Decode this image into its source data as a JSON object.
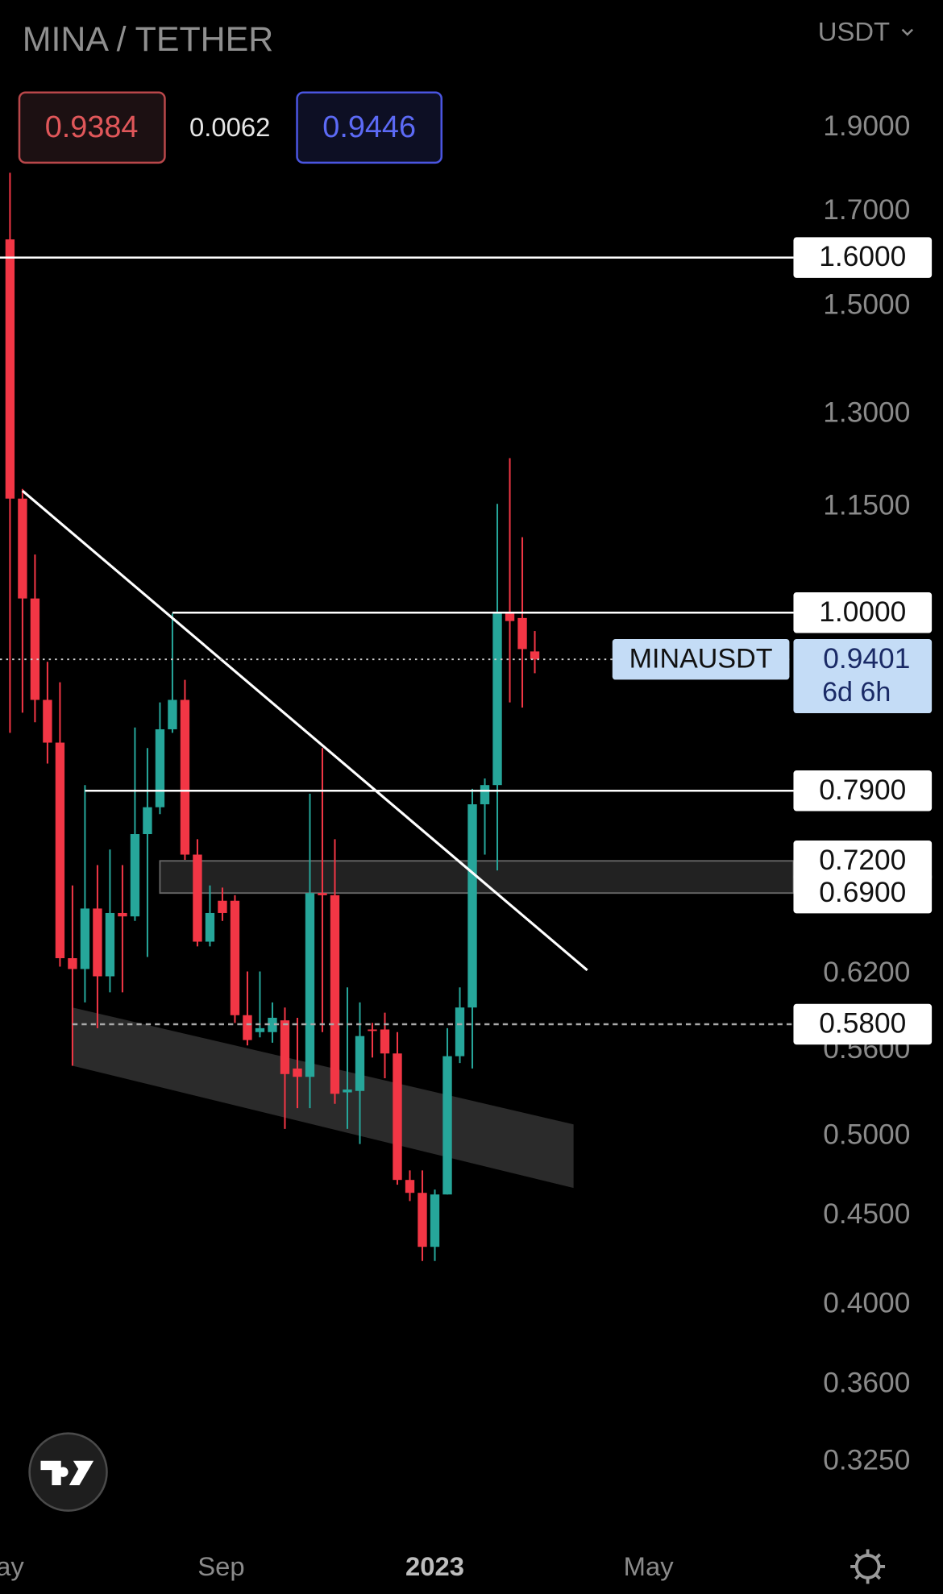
{
  "chart_data": {
    "type": "candlestick",
    "title": "MINA / TETHER",
    "currency": "USDT",
    "header": {
      "bid": 0.9384,
      "spread": 0.0062,
      "ask": 0.9446
    },
    "log_scale": true,
    "ylim": [
      0.295,
      2.25
    ],
    "yticks": [
      {
        "value": 1.9,
        "label": "1.9000"
      },
      {
        "value": 1.7,
        "label": "1.7000"
      },
      {
        "value": 1.5,
        "label": "1.5000"
      },
      {
        "value": 1.3,
        "label": "1.3000"
      },
      {
        "value": 1.15,
        "label": "1.1500"
      },
      {
        "value": 0.62,
        "label": "0.6200"
      },
      {
        "value": 0.56,
        "label": "0.5600"
      },
      {
        "value": 0.5,
        "label": "0.5000"
      },
      {
        "value": 0.45,
        "label": "0.4500"
      },
      {
        "value": 0.4,
        "label": "0.4000"
      },
      {
        "value": 0.36,
        "label": "0.3600"
      },
      {
        "value": 0.325,
        "label": "0.3250"
      }
    ],
    "xlim": [
      -0.8,
      62.7
    ],
    "xticks": [
      {
        "value": 0,
        "label": "ay"
      },
      {
        "value": 16.9,
        "label": "Sep"
      },
      {
        "value": 34,
        "label": "2023"
      },
      {
        "value": 51.1,
        "label": "May"
      }
    ],
    "up_color": "#26a69a",
    "down_color": "#f23645",
    "open": [
      1.639,
      1.163,
      1.019,
      0.891,
      0.842,
      0.633,
      0.624,
      0.676,
      0.618,
      0.672,
      0.669,
      0.746,
      0.773,
      0.857,
      0.891,
      0.726,
      0.647,
      0.683,
      0.683,
      0.587,
      0.574,
      0.574,
      0.583,
      0.547,
      0.541,
      0.69,
      0.688,
      0.53,
      0.531,
      0.576,
      0.576,
      0.558,
      0.472,
      0.464,
      0.432,
      0.463,
      0.556,
      0.593,
      0.776,
      0.796,
      0.999,
      0.993,
      0.95
    ],
    "high": [
      1.79,
      1.178,
      1.08,
      0.937,
      0.912,
      0.697,
      0.796,
      0.716,
      0.731,
      0.716,
      0.859,
      0.836,
      0.888,
      0.999,
      0.915,
      0.741,
      0.697,
      0.695,
      0.688,
      0.622,
      0.622,
      0.597,
      0.593,
      0.585,
      0.787,
      0.836,
      0.741,
      0.609,
      0.597,
      0.581,
      0.589,
      0.574,
      0.478,
      0.478,
      0.466,
      0.577,
      0.609,
      0.792,
      0.803,
      1.155,
      1.227,
      1.105,
      0.976
    ],
    "low": [
      0.853,
      0.876,
      0.865,
      0.819,
      0.626,
      0.549,
      0.597,
      0.577,
      0.605,
      0.605,
      0.665,
      0.634,
      0.766,
      0.853,
      0.721,
      0.643,
      0.643,
      0.665,
      0.581,
      0.564,
      0.57,
      0.566,
      0.505,
      0.519,
      0.519,
      0.574,
      0.522,
      0.505,
      0.495,
      0.555,
      0.54,
      0.469,
      0.459,
      0.424,
      0.424,
      0.463,
      0.551,
      0.547,
      0.726,
      0.711,
      0.888,
      0.882,
      0.923
    ],
    "close": [
      1.163,
      1.019,
      0.891,
      0.842,
      0.633,
      0.624,
      0.676,
      0.618,
      0.672,
      0.669,
      0.746,
      0.773,
      0.857,
      0.891,
      0.726,
      0.647,
      0.672,
      0.672,
      0.587,
      0.568,
      0.577,
      0.585,
      0.543,
      0.541,
      0.69,
      0.688,
      0.529,
      0.532,
      0.571,
      0.575,
      0.558,
      0.472,
      0.464,
      0.432,
      0.463,
      0.556,
      0.593,
      0.776,
      0.796,
      0.999,
      0.989,
      0.953,
      0.9401
    ],
    "levels": [
      {
        "value": 1.6,
        "label": "1.6000",
        "start": -0.8,
        "style": "solid"
      },
      {
        "value": 1.0,
        "label": "1.0000",
        "start": 13,
        "style": "solid"
      },
      {
        "value": 0.79,
        "label": "0.7900",
        "start": 6,
        "style": "solid"
      },
      {
        "value": 0.58,
        "label": "0.5800",
        "start": 5,
        "style": "dashed"
      }
    ],
    "zone": {
      "low": 0.69,
      "high": 0.72,
      "low_label": "0.6900",
      "high_label": "0.7200",
      "start": 12
    },
    "trendline": {
      "x": [
        1,
        46.2
      ],
      "y": [
        1.175,
        0.623
      ]
    },
    "channel": {
      "x": [
        5,
        45.1
      ],
      "upper": [
        0.593,
        0.508
      ],
      "lower": [
        0.549,
        0.467
      ]
    },
    "last_price": {
      "symbol": "MINAUSDT",
      "value": 0.9401,
      "countdown": "6d 6h"
    }
  }
}
